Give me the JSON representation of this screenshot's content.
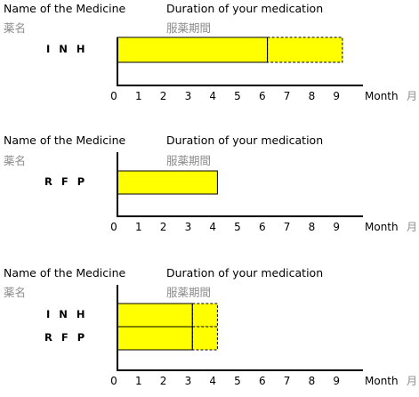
{
  "labels": {
    "medicine_en": "Name of the Medicine",
    "medicine_jp": "薬名",
    "duration_en": "Duration of your medication",
    "duration_jp": "服薬期間",
    "unit_en": "Month",
    "unit_jp": "月"
  },
  "colors": {
    "bar_fill": "#ffff00",
    "axis": "#000000"
  },
  "chart_data": [
    {
      "type": "bar",
      "orientation": "horizontal",
      "xlabel": "Month",
      "xlim": [
        0,
        9
      ],
      "ticks": [
        "0",
        "1",
        "2",
        "3",
        "4",
        "5",
        "6",
        "7",
        "8",
        "9"
      ],
      "rows": [
        {
          "name": "I N H",
          "solid": [
            0,
            6
          ],
          "dashed": [
            6,
            9
          ]
        }
      ]
    },
    {
      "type": "bar",
      "orientation": "horizontal",
      "xlabel": "Month",
      "xlim": [
        0,
        9
      ],
      "ticks": [
        "0",
        "1",
        "2",
        "3",
        "4",
        "5",
        "6",
        "7",
        "8",
        "9"
      ],
      "rows": [
        {
          "name": "R F P",
          "solid": [
            0,
            4
          ],
          "dashed": null
        }
      ]
    },
    {
      "type": "bar",
      "orientation": "horizontal",
      "xlabel": "Month",
      "xlim": [
        0,
        9
      ],
      "ticks": [
        "0",
        "1",
        "2",
        "3",
        "4",
        "5",
        "6",
        "7",
        "8",
        "9"
      ],
      "rows": [
        {
          "name": "I N H",
          "solid": [
            0,
            3
          ],
          "dashed": [
            3,
            4
          ]
        },
        {
          "name": "R F P",
          "solid": [
            0,
            3
          ],
          "dashed": [
            3,
            4
          ]
        }
      ]
    }
  ]
}
